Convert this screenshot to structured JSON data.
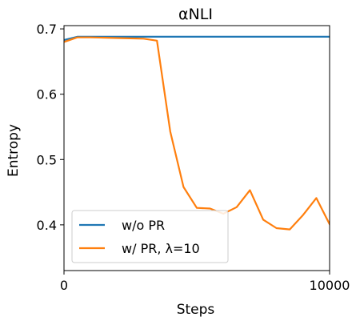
{
  "chart_data": {
    "type": "line",
    "title": "αNLI",
    "xlabel": "Steps",
    "ylabel": "Entropy",
    "xlim": [
      0,
      10000
    ],
    "ylim": [
      0.33,
      0.705
    ],
    "xticks": [
      0,
      10000
    ],
    "xtick_labels": [
      "0",
      "10000"
    ],
    "yticks": [
      0.4,
      0.5,
      0.6,
      0.7
    ],
    "ytick_labels": [
      "0.4",
      "0.5",
      "0.6",
      "0.7"
    ],
    "grid": false,
    "legend_position": "lower-left",
    "series": [
      {
        "name": "w/o PR",
        "color": "#1f77b4",
        "x": [
          0,
          500,
          1000,
          2000,
          3000,
          4000,
          5000,
          6000,
          7000,
          8000,
          9000,
          10000
        ],
        "y": [
          0.683,
          0.688,
          0.688,
          0.688,
          0.688,
          0.688,
          0.688,
          0.688,
          0.688,
          0.688,
          0.688,
          0.688
        ]
      },
      {
        "name": "w/ PR, λ=10",
        "color": "#ff7f0e",
        "x": [
          0,
          500,
          1000,
          2000,
          3000,
          3500,
          4000,
          4500,
          5000,
          5500,
          6000,
          6500,
          7000,
          7500,
          8000,
          8500,
          9000,
          9500,
          10000
        ],
        "y": [
          0.68,
          0.687,
          0.687,
          0.686,
          0.685,
          0.682,
          0.543,
          0.458,
          0.426,
          0.425,
          0.417,
          0.427,
          0.453,
          0.408,
          0.395,
          0.393,
          0.415,
          0.441,
          0.401
        ]
      }
    ]
  }
}
